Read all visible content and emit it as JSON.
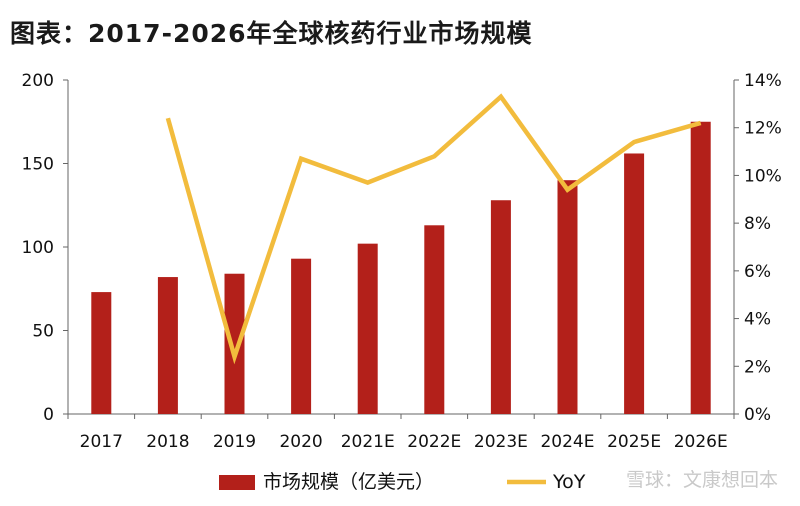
{
  "title": "图表：2017-2026年全球核药行业市场规模",
  "watermark": "雪球：文康想回本",
  "chart_data": {
    "type": "bar",
    "categories": [
      "2017",
      "2018",
      "2019",
      "2020",
      "2021E",
      "2022E",
      "2023E",
      "2024E",
      "2025E",
      "2026E"
    ],
    "series": [
      {
        "name": "市场规模（亿美元）",
        "type": "bar",
        "axis": "left",
        "color": "#b3201a",
        "values": [
          73,
          82,
          84,
          93,
          102,
          113,
          128,
          140,
          156,
          175
        ]
      },
      {
        "name": "YoY",
        "type": "line",
        "axis": "right",
        "color": "#f2bc3d",
        "values": [
          null,
          12.4,
          2.4,
          10.7,
          9.7,
          10.8,
          13.3,
          9.4,
          11.4,
          12.2
        ]
      }
    ],
    "y_left": {
      "ticks": [
        "0",
        "50",
        "100",
        "150",
        "200"
      ],
      "range": [
        0,
        200
      ]
    },
    "y_right": {
      "ticks": [
        "0%",
        "2%",
        "4%",
        "6%",
        "8%",
        "10%",
        "12%",
        "14%"
      ],
      "range": [
        0,
        14
      ]
    },
    "legend_position": "bottom"
  }
}
